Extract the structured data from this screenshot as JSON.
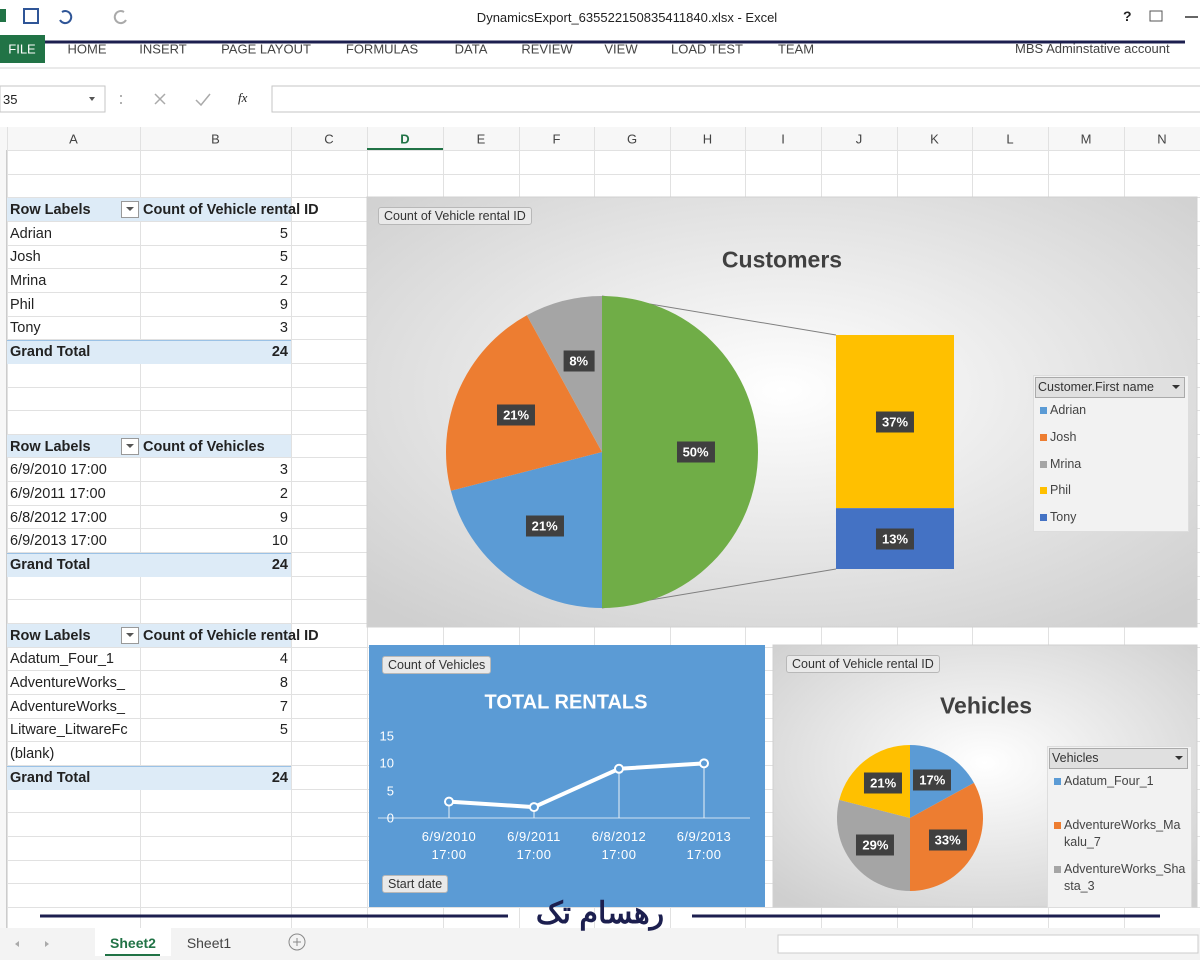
{
  "window": {
    "title": "DynamicsExport_635522150835411840.xlsx - Excel",
    "help": "?"
  },
  "ribbon": {
    "tabs": [
      "FILE",
      "HOME",
      "INSERT",
      "PAGE LAYOUT",
      "FORMULAS",
      "DATA",
      "REVIEW",
      "VIEW",
      "LOAD TEST",
      "TEAM"
    ],
    "account": "MBS Adminstative account"
  },
  "formula_bar": {
    "name_box": "35",
    "fx": "fx"
  },
  "columns": [
    "A",
    "B",
    "C",
    "D",
    "E",
    "F",
    "G",
    "H",
    "I",
    "J",
    "K",
    "L",
    "M",
    "N"
  ],
  "pivots": [
    {
      "header": [
        "Row Labels",
        "Count of Vehicle rental ID"
      ],
      "rows": [
        [
          "Adrian",
          5
        ],
        [
          "Josh",
          5
        ],
        [
          "Mrina",
          2
        ],
        [
          "Phil",
          9
        ],
        [
          "Tony",
          3
        ]
      ],
      "total": [
        "Grand Total",
        24
      ]
    },
    {
      "header": [
        "Row Labels",
        "Count of Vehicles"
      ],
      "rows": [
        [
          "6/9/2010 17:00",
          3
        ],
        [
          "6/9/2011 17:00",
          2
        ],
        [
          "6/8/2012 17:00",
          9
        ],
        [
          "6/9/2013 17:00",
          10
        ]
      ],
      "total": [
        "Grand Total",
        24
      ]
    },
    {
      "header": [
        "Row Labels",
        "Count of Vehicle rental ID"
      ],
      "rows": [
        [
          "Adatum_Four_1",
          4
        ],
        [
          "AdventureWorks_",
          8
        ],
        [
          "AdventureWorks_",
          7
        ],
        [
          "Litware_LitwareFc",
          5
        ],
        [
          "(blank)",
          null
        ]
      ],
      "total": [
        "Grand Total",
        24
      ]
    }
  ],
  "charts": [
    {
      "type": "pie_of_pie",
      "field_button": "Count of Vehicle rental ID",
      "title": "Customers",
      "legend_title": "Customer.First name",
      "names": [
        "Adrian",
        "Josh",
        "Mrina",
        "Phil",
        "Tony"
      ],
      "values": [
        21,
        21,
        8,
        37,
        13
      ],
      "value_labels": [
        "21%",
        "21%",
        "8%",
        "37%",
        "13%"
      ],
      "colors": [
        "#5b9bd5",
        "#ed7d31",
        "#a5a5a5",
        "#ffc000",
        "#4472c4"
      ],
      "split_last": 2,
      "other": {
        "value": 50,
        "value_label": "50%",
        "color": "#70ad47"
      }
    },
    {
      "type": "line",
      "field_button": "Count of Vehicles",
      "title": "TOTAL RENTALS",
      "categories": [
        "6/9/2010 17:00",
        "6/9/2011 17:00",
        "6/8/2012 17:00",
        "6/9/2013 17:00"
      ],
      "values": [
        3,
        2,
        9,
        10
      ],
      "color": "#ffffff",
      "ylim": [
        0,
        15
      ],
      "yticks": [
        0,
        5,
        10,
        15
      ],
      "filter_button": "Start date"
    },
    {
      "type": "pie",
      "field_button": "Count of Vehicle rental ID",
      "title": "Vehicles",
      "legend_title": "Vehicles",
      "names": [
        "Adatum_Four_1",
        "AdventureWorks_Makalu_7",
        "AdventureWorks_Shasta_3",
        null
      ],
      "values": [
        17,
        33,
        29,
        21
      ],
      "value_labels": [
        "17%",
        "33%",
        "29%",
        "21%"
      ],
      "colors": [
        "#5b9bd5",
        "#ed7d31",
        "#a5a5a5",
        "#ffc000"
      ]
    }
  ],
  "sheet_tabs": [
    "Sheet2",
    "Sheet1"
  ],
  "watermark": "رهسام تک"
}
